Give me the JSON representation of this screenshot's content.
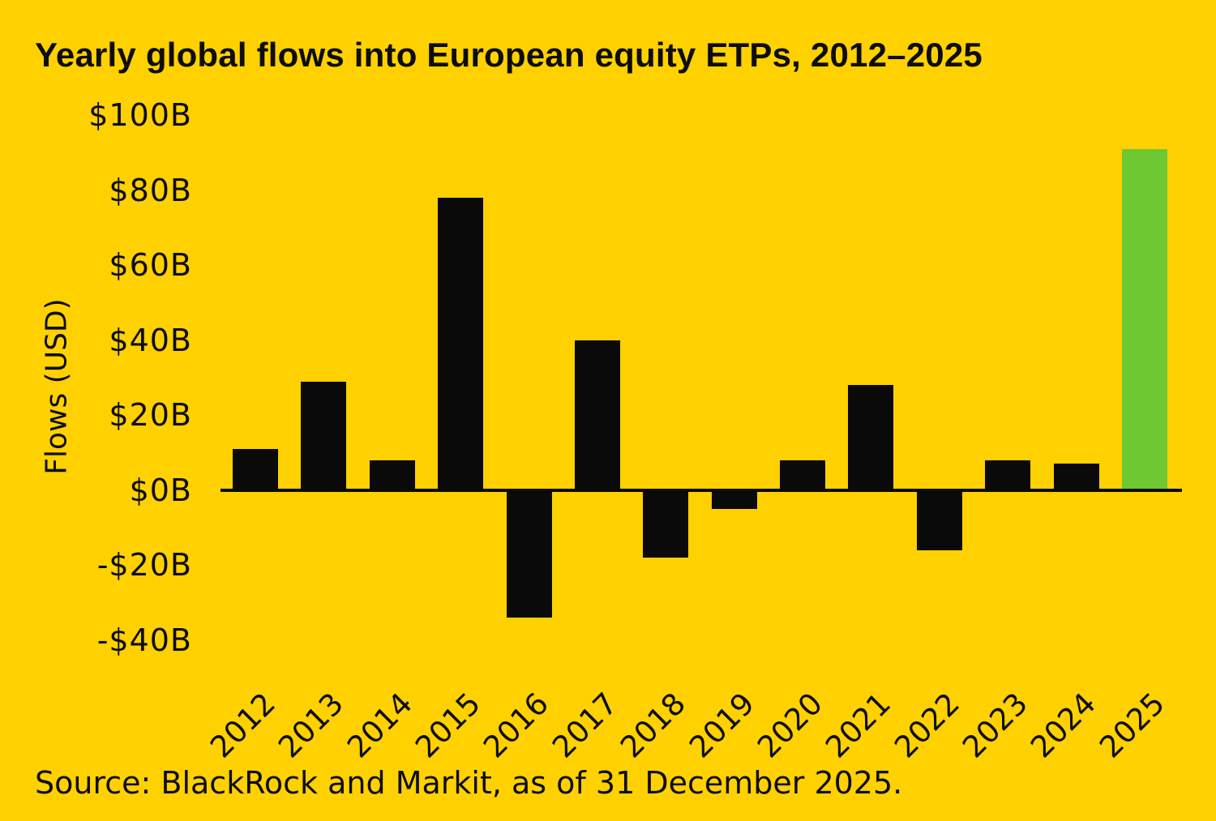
{
  "page": {
    "background_color": "#FFD100",
    "text_color": "#0D0D0D"
  },
  "chart_data": {
    "type": "bar",
    "title": "Yearly global flows into European equity ETPs, 2012–2025",
    "ylabel": "Flows (USD)",
    "unit": "billions USD",
    "categories": [
      "2012",
      "2013",
      "2014",
      "2015",
      "2016",
      "2017",
      "2018",
      "2019",
      "2020",
      "2021",
      "2022",
      "2023",
      "2024",
      "2025"
    ],
    "values": [
      11,
      29,
      8,
      78,
      -34,
      40,
      -18,
      -5,
      8,
      28,
      -16,
      8,
      7,
      91
    ],
    "bar_color": "#0A0A0A",
    "highlight_color": "#6EC831",
    "highlight_category": "2025",
    "axis_color": "#0A0A0A",
    "ylim": [
      -40,
      100
    ],
    "yticks": [
      {
        "value": 100,
        "label": "$100B"
      },
      {
        "value": 80,
        "label": "$80B"
      },
      {
        "value": 60,
        "label": "$60B"
      },
      {
        "value": 40,
        "label": "$40B"
      },
      {
        "value": 20,
        "label": "$20B"
      },
      {
        "value": 0,
        "label": "$0B"
      },
      {
        "value": -20,
        "label": "-$20B"
      },
      {
        "value": -40,
        "label": "-$40B"
      }
    ],
    "grid": false,
    "legend": null,
    "source": "Source: BlackRock and Markit, as of 31 December 2025."
  }
}
